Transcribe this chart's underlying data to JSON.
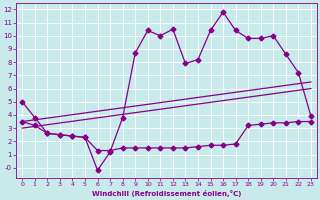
{
  "xlabel": "Windchill (Refroidissement éolien,°C)",
  "background_color": "#c8eaea",
  "line_color": "#880088",
  "grid_color": "#ffffff",
  "xlim_min": -0.5,
  "xlim_max": 23.5,
  "ylim_min": -0.8,
  "ylim_max": 12.5,
  "xticks": [
    0,
    1,
    2,
    3,
    4,
    5,
    6,
    7,
    8,
    9,
    10,
    11,
    12,
    13,
    14,
    15,
    16,
    17,
    18,
    19,
    20,
    21,
    22,
    23
  ],
  "yticks": [
    0,
    1,
    2,
    3,
    4,
    5,
    6,
    7,
    8,
    9,
    10,
    11,
    12
  ],
  "ytick_labels": [
    "-0",
    "1",
    "2",
    "3",
    "4",
    "5",
    "6",
    "7",
    "8",
    "9",
    "10",
    "11",
    "12"
  ],
  "line1_x": [
    0,
    1,
    2,
    3,
    4,
    5,
    6,
    7,
    8,
    9,
    10,
    11,
    12,
    13,
    14,
    15,
    16,
    17,
    18,
    19,
    20,
    21,
    22,
    23
  ],
  "line1_y": [
    5.0,
    3.8,
    2.6,
    2.5,
    2.4,
    2.3,
    -0.2,
    1.2,
    3.8,
    8.7,
    10.4,
    10.0,
    10.5,
    7.9,
    8.2,
    10.4,
    11.8,
    10.4,
    9.8,
    9.8,
    10.0,
    8.6,
    7.2,
    3.9
  ],
  "line2_x": [
    0,
    1,
    2,
    3,
    4,
    5,
    6,
    7,
    8,
    9,
    10,
    11,
    12,
    13,
    14,
    15,
    16,
    17,
    18,
    19,
    20,
    21,
    22,
    23
  ],
  "line2_y": [
    3.5,
    3.2,
    2.6,
    2.5,
    2.4,
    2.3,
    1.3,
    1.3,
    1.5,
    1.5,
    1.5,
    1.5,
    1.5,
    1.5,
    1.6,
    1.7,
    1.7,
    1.8,
    3.2,
    3.3,
    3.4,
    3.4,
    3.5,
    3.5
  ],
  "line3_x": [
    0,
    23
  ],
  "line3_y": [
    3.5,
    6.5
  ],
  "line4_x": [
    0,
    23
  ],
  "line4_y": [
    3.0,
    6.0
  ]
}
